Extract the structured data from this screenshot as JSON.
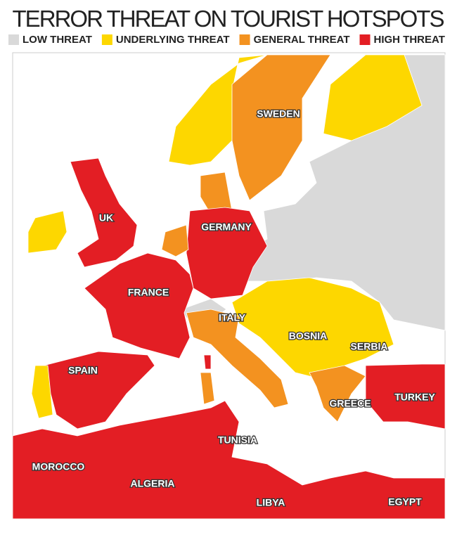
{
  "title": "TERROR THREAT ON TOURIST HOTSPOTS",
  "legend": [
    {
      "label": "LOW THREAT",
      "color": "#d9d9d9"
    },
    {
      "label": "UNDERLYING THREAT",
      "color": "#fdd700"
    },
    {
      "label": "GENERAL THREAT",
      "color": "#f39220"
    },
    {
      "label": "HIGH THREAT",
      "color": "#e31e24"
    }
  ],
  "labels": [
    "SWEDEN",
    "UK",
    "GERMANY",
    "FRANCE",
    "ITALY",
    "BOSNIA",
    "SERBIA",
    "SPAIN",
    "GREECE",
    "TURKEY",
    "TUNISIA",
    "MOROCCO",
    "ALGERIA",
    "LIBYA",
    "EGYPT"
  ]
}
